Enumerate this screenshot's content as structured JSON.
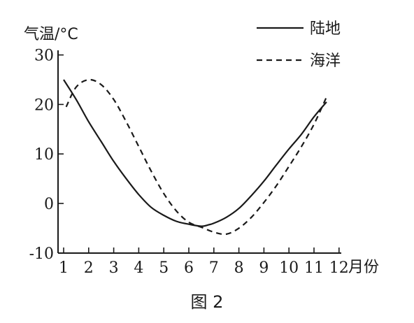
{
  "chart_data": {
    "type": "line",
    "caption": "图 2",
    "ylabel": "气温/°C",
    "xunit": "月份",
    "x": [
      1,
      2,
      3,
      4,
      5,
      6,
      7,
      8,
      9,
      10,
      11,
      12
    ],
    "xlim": [
      0.95,
      11.55
    ],
    "ylim": [
      -10,
      30
    ],
    "x_ticks": [
      "1",
      "2",
      "3",
      "4",
      "5",
      "6",
      "7",
      "8",
      "9",
      "10",
      "11",
      "12"
    ],
    "y_ticks": [
      "-10",
      "0",
      "10",
      "20",
      "30"
    ],
    "y_tick_values": [
      -10,
      0,
      10,
      20,
      30
    ],
    "grid": false,
    "legend_position": "top-right",
    "series": [
      {
        "name": "陆地",
        "style": "solid",
        "x": [
          1.0,
          1.5,
          2.0,
          2.5,
          3.0,
          3.5,
          4.0,
          4.5,
          5.0,
          5.5,
          6.0,
          6.5,
          6.8,
          7.0,
          7.5,
          8.0,
          8.5,
          9.0,
          9.5,
          10.0,
          10.5,
          11.0,
          11.5
        ],
        "y": [
          25.0,
          21.0,
          16.5,
          12.5,
          8.5,
          5.0,
          1.8,
          -0.8,
          -2.4,
          -3.6,
          -4.2,
          -4.6,
          -4.3,
          -4.0,
          -2.8,
          -1.0,
          1.6,
          4.5,
          7.8,
          11.0,
          14.0,
          17.5,
          20.5
        ]
      },
      {
        "name": "海洋",
        "style": "dashed",
        "x": [
          1.1,
          1.5,
          2.0,
          2.5,
          3.0,
          3.5,
          4.0,
          4.5,
          5.0,
          5.5,
          6.0,
          6.5,
          7.0,
          7.5,
          8.0,
          8.5,
          9.0,
          9.5,
          10.0,
          10.5,
          11.0,
          11.5
        ],
        "y": [
          19.5,
          23.5,
          25.0,
          24.0,
          21.0,
          16.5,
          11.5,
          6.5,
          2.0,
          -1.5,
          -3.8,
          -4.8,
          -5.8,
          -6.2,
          -5.0,
          -2.8,
          0.2,
          3.6,
          7.5,
          11.5,
          16.0,
          21.5
        ]
      }
    ]
  }
}
